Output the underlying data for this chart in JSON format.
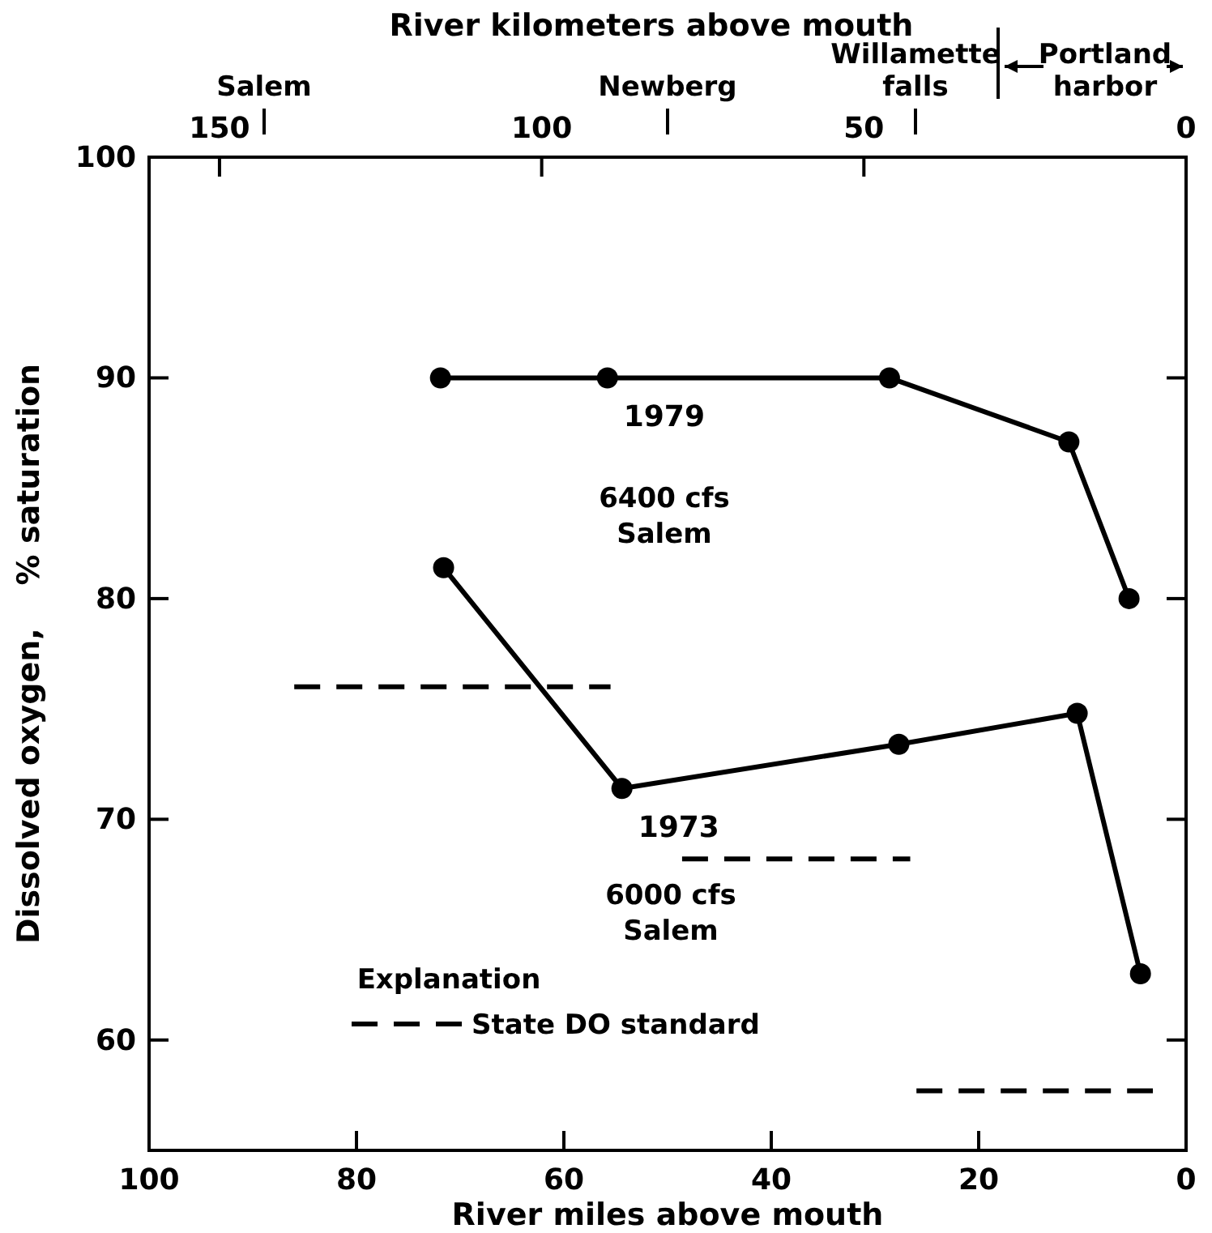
{
  "chart_data": {
    "type": "line",
    "xlabel": "River miles above mouth",
    "ylabel": "Dissolved oxygen,    % saturation",
    "x2label": "River kilometers above mouth",
    "xlim": [
      100,
      0
    ],
    "xticks": [
      100,
      80,
      60,
      40,
      20,
      0
    ],
    "x2lim": [
      160.93,
      0
    ],
    "x2ticks": [
      150,
      100,
      50,
      0
    ],
    "ylim": [
      55,
      100
    ],
    "yticks": [
      60,
      70,
      80,
      90,
      100
    ],
    "grid": false,
    "legend": "bottom left",
    "legend_title": "Explanation",
    "marker": "circle",
    "series": [
      {
        "name": "1979",
        "color": "#000000",
        "x": [
          71.9,
          55.8,
          28.6,
          11.3,
          5.5
        ],
        "values": [
          90,
          90,
          90,
          87.1,
          80
        ],
        "line_style": "solid"
      },
      {
        "name": "1973",
        "color": "#000000",
        "x": [
          71.6,
          54.4,
          27.7,
          10.5,
          4.4
        ],
        "values": [
          81.4,
          71.4,
          73.4,
          74.8,
          63
        ],
        "line_style": "solid"
      },
      {
        "name": "State DO standard",
        "color": "#000000",
        "x": [
          86,
          55.5,
          52,
          48.6,
          26.6,
          26.3,
          26,
          3.2
        ],
        "values": [
          76,
          76,
          null,
          68.2,
          68.2,
          null,
          57.7,
          57.7
        ],
        "line_style": "dashed",
        "marker": "none"
      }
    ],
    "annotations": [
      "6400 cfs\nSalem",
      "6000 cfs\nSalem",
      "Salem",
      "Newberg",
      "Willamette\nfalls",
      "Portland\nharbor"
    ]
  }
}
